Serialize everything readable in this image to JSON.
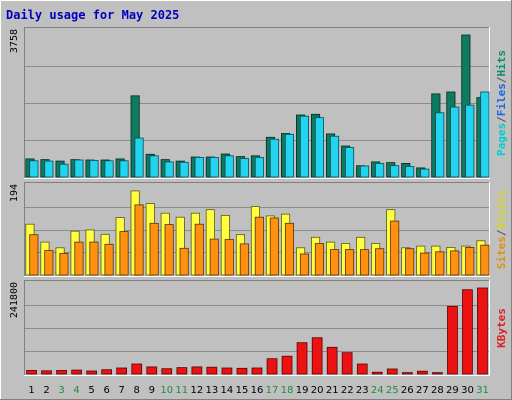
{
  "chart_data": {
    "type": "bar",
    "title": "Daily usage for May 2025",
    "categories": [
      "1",
      "2",
      "3",
      "4",
      "5",
      "6",
      "7",
      "8",
      "9",
      "10",
      "11",
      "12",
      "13",
      "14",
      "15",
      "16",
      "17",
      "18",
      "19",
      "20",
      "21",
      "22",
      "23",
      "24",
      "25",
      "26",
      "27",
      "28",
      "29",
      "30",
      "31"
    ],
    "weekend_days": [
      "3",
      "4",
      "10",
      "11",
      "17",
      "18",
      "24",
      "25",
      "31"
    ],
    "panels": [
      {
        "id": "top",
        "axis_max_label": "3758",
        "ylim": [
          0,
          3758
        ],
        "right_labels": [
          {
            "text": "Pages",
            "color": "#00CED1"
          },
          {
            "text": "/",
            "color": "#555555"
          },
          {
            "text": "Files",
            "color": "#1E64E6"
          },
          {
            "text": "/",
            "color": "#555555"
          },
          {
            "text": "Hits",
            "color": "#0E8C6E"
          }
        ],
        "series": [
          {
            "name": "Hits",
            "color": "#0E7A60",
            "values": [
              480,
              460,
              420,
              460,
              450,
              450,
              480,
              2150,
              600,
              460,
              420,
              530,
              530,
              610,
              540,
              560,
              1050,
              1150,
              1640,
              1660,
              1140,
              820,
              300,
              400,
              380,
              360,
              240,
              2200,
              2250,
              3758,
              2100
            ]
          },
          {
            "name": "Pages",
            "color": "#22D4F0",
            "values": [
              430,
              420,
              340,
              450,
              440,
              430,
              430,
              1030,
              560,
              400,
              390,
              520,
              520,
              560,
              490,
              520,
              1000,
              1130,
              1610,
              1570,
              1080,
              780,
              290,
              360,
              300,
              280,
              210,
              1700,
              1850,
              1900,
              2250
            ]
          }
        ]
      },
      {
        "id": "middle",
        "axis_max_label": "194",
        "ylim": [
          0,
          194
        ],
        "right_labels": [
          {
            "text": "Sites",
            "color": "#E09010"
          },
          {
            "text": "/",
            "color": "#555555"
          },
          {
            "text": "Visits",
            "color": "#D8D820"
          }
        ],
        "series": [
          {
            "name": "Visits",
            "color": "#FFFF40",
            "values": [
              116,
              75,
              62,
              100,
              103,
              93,
              131,
              192,
              163,
              141,
              132,
              141,
              149,
              136,
              92,
              156,
              135,
              139,
              62,
              86,
              75,
              72,
              86,
              72,
              149,
              62,
              66,
              66,
              63,
              66,
              78
            ]
          },
          {
            "name": "Sites",
            "color": "#FF9010",
            "values": [
              92,
              56,
              49,
              75,
              75,
              70,
              99,
              160,
              118,
              115,
              61,
              116,
              82,
              81,
              71,
              132,
              130,
              118,
              48,
              72,
              58,
              58,
              58,
              60,
              123,
              60,
              50,
              53,
              55,
              63,
              68
            ]
          }
        ]
      },
      {
        "id": "bottom",
        "axis_max_label": "241800",
        "ylim": [
          0,
          241800
        ],
        "right_labels": [
          {
            "text": "KBytes",
            "color": "#E02020"
          }
        ],
        "series": [
          {
            "name": "KBytes",
            "color": "#EE1111",
            "values": [
              10000,
              9000,
              10000,
              11000,
              8500,
              12000,
              17000,
              28000,
              20000,
              15000,
              18000,
              20000,
              19000,
              17000,
              16000,
              17000,
              43000,
              50000,
              88000,
              102000,
              75000,
              60000,
              28000,
              5000,
              14000,
              4000,
              8000,
              4000,
              190000,
              237000,
              241800
            ]
          }
        ]
      }
    ]
  }
}
